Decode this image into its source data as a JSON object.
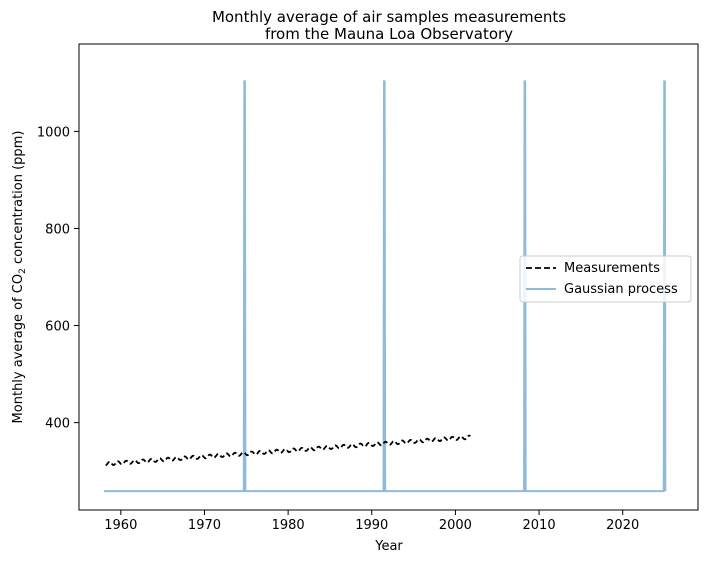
{
  "chart_data": {
    "type": "line",
    "title_line1": "Monthly average of air samples measurements",
    "title_line2": "from the Mauna Loa Observatory",
    "xlabel": "Year",
    "ylabel_prefix": "Monthly average of CO",
    "ylabel_subscript": "2",
    "ylabel_suffix": " concentration (ppm)",
    "xlim": [
      1955,
      2029
    ],
    "ylim": [
      220,
      1180
    ],
    "x_ticks": [
      1960,
      1970,
      1980,
      1990,
      2000,
      2010,
      2020
    ],
    "y_ticks": [
      400,
      600,
      800,
      1000
    ],
    "legend_position": "center-right",
    "series": [
      {
        "name": "Measurements",
        "style": "dashed",
        "color": "#000000",
        "x_start": 1958.2,
        "x_end": 2001.8,
        "trend_start": 315,
        "trend_end": 370,
        "seasonal_amplitude": 3.5
      },
      {
        "name": "Gaussian process",
        "style": "solid",
        "color": "#1f77b4",
        "opacity": 0.5,
        "x_start": 1958.0,
        "x_end": 2025.0,
        "baseline": 259,
        "spike_value": 1103,
        "spike_years": [
          1974.8,
          1991.5,
          2008.3,
          2025.0
        ]
      }
    ]
  }
}
